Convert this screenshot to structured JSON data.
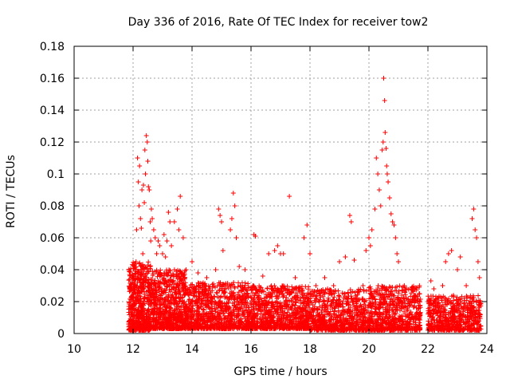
{
  "chart_data": {
    "type": "scatter",
    "title": "Day 336 of 2016, Rate Of TEC Index for receiver tow2",
    "xlabel": "GPS time / hours",
    "ylabel": "ROTI / TECUs",
    "xlim": [
      10,
      24
    ],
    "ylim": [
      0,
      0.18
    ],
    "xticks": [
      10,
      12,
      14,
      16,
      18,
      20,
      22,
      24
    ],
    "xtick_labels": [
      "10",
      "12",
      "14",
      "16",
      "18",
      "20",
      "22",
      "24"
    ],
    "yticks": [
      0,
      0.02,
      0.04,
      0.06,
      0.08,
      0.1,
      0.12,
      0.14,
      0.16,
      0.18
    ],
    "ytick_labels": [
      "0",
      "0.02",
      "0.04",
      "0.06",
      "0.08",
      "0.1",
      "0.12",
      "0.14",
      "0.16",
      "0.18"
    ],
    "grid": true,
    "marker": "+",
    "color": "#ff0000",
    "series": [
      {
        "name": "tow2",
        "points": [
          [
            11.9,
            0.028
          ],
          [
            11.95,
            0.012
          ],
          [
            12.0,
            0.02
          ],
          [
            12.05,
            0.031
          ],
          [
            12.1,
            0.045
          ],
          [
            12.12,
            0.065
          ],
          [
            12.15,
            0.11
          ],
          [
            12.18,
            0.095
          ],
          [
            12.2,
            0.08
          ],
          [
            12.22,
            0.105
          ],
          [
            12.25,
            0.072
          ],
          [
            12.28,
            0.066
          ],
          [
            12.3,
            0.09
          ],
          [
            12.33,
            0.05
          ],
          [
            12.35,
            0.093
          ],
          [
            12.38,
            0.082
          ],
          [
            12.4,
            0.115
          ],
          [
            12.42,
            0.1
          ],
          [
            12.45,
            0.124
          ],
          [
            12.48,
            0.12
          ],
          [
            12.5,
            0.108
          ],
          [
            12.52,
            0.092
          ],
          [
            12.55,
            0.09
          ],
          [
            12.58,
            0.07
          ],
          [
            12.6,
            0.058
          ],
          [
            12.62,
            0.078
          ],
          [
            12.65,
            0.072
          ],
          [
            12.7,
            0.065
          ],
          [
            12.75,
            0.06
          ],
          [
            12.8,
            0.05
          ],
          [
            12.85,
            0.058
          ],
          [
            12.9,
            0.055
          ],
          [
            13.0,
            0.05
          ],
          [
            13.05,
            0.062
          ],
          [
            13.1,
            0.048
          ],
          [
            13.15,
            0.058
          ],
          [
            13.2,
            0.076
          ],
          [
            13.25,
            0.07
          ],
          [
            13.3,
            0.055
          ],
          [
            13.4,
            0.07
          ],
          [
            13.5,
            0.078
          ],
          [
            13.55,
            0.065
          ],
          [
            13.6,
            0.086
          ],
          [
            13.7,
            0.06
          ],
          [
            13.8,
            0.04
          ],
          [
            14.0,
            0.045
          ],
          [
            14.2,
            0.038
          ],
          [
            14.5,
            0.035
          ],
          [
            14.8,
            0.04
          ],
          [
            14.9,
            0.078
          ],
          [
            14.95,
            0.074
          ],
          [
            15.0,
            0.07
          ],
          [
            15.05,
            0.052
          ],
          [
            15.3,
            0.065
          ],
          [
            15.35,
            0.072
          ],
          [
            15.4,
            0.088
          ],
          [
            15.45,
            0.08
          ],
          [
            15.5,
            0.06
          ],
          [
            15.6,
            0.042
          ],
          [
            15.8,
            0.04
          ],
          [
            16.1,
            0.062
          ],
          [
            16.15,
            0.061
          ],
          [
            16.4,
            0.036
          ],
          [
            16.6,
            0.05
          ],
          [
            16.8,
            0.052
          ],
          [
            16.9,
            0.055
          ],
          [
            17.0,
            0.05
          ],
          [
            17.1,
            0.05
          ],
          [
            17.3,
            0.086
          ],
          [
            17.5,
            0.035
          ],
          [
            17.8,
            0.06
          ],
          [
            17.9,
            0.068
          ],
          [
            18.0,
            0.05
          ],
          [
            18.2,
            0.03
          ],
          [
            18.5,
            0.035
          ],
          [
            18.8,
            0.03
          ],
          [
            19.0,
            0.045
          ],
          [
            19.2,
            0.048
          ],
          [
            19.35,
            0.074
          ],
          [
            19.4,
            0.07
          ],
          [
            19.5,
            0.046
          ],
          [
            19.8,
            0.03
          ],
          [
            19.9,
            0.052
          ],
          [
            20.0,
            0.06
          ],
          [
            20.05,
            0.055
          ],
          [
            20.1,
            0.065
          ],
          [
            20.2,
            0.078
          ],
          [
            20.25,
            0.11
          ],
          [
            20.3,
            0.1
          ],
          [
            20.35,
            0.09
          ],
          [
            20.4,
            0.08
          ],
          [
            20.45,
            0.115
          ],
          [
            20.48,
            0.12
          ],
          [
            20.5,
            0.16
          ],
          [
            20.53,
            0.146
          ],
          [
            20.55,
            0.126
          ],
          [
            20.58,
            0.116
          ],
          [
            20.6,
            0.105
          ],
          [
            20.62,
            0.1
          ],
          [
            20.65,
            0.095
          ],
          [
            20.7,
            0.085
          ],
          [
            20.75,
            0.075
          ],
          [
            20.8,
            0.07
          ],
          [
            20.85,
            0.068
          ],
          [
            20.9,
            0.06
          ],
          [
            20.95,
            0.05
          ],
          [
            21.0,
            0.045
          ],
          [
            21.2,
            0.03
          ],
          [
            21.5,
            0.028
          ],
          [
            21.7,
            0.025
          ],
          [
            22.1,
            0.033
          ],
          [
            22.2,
            0.028
          ],
          [
            22.5,
            0.03
          ],
          [
            22.6,
            0.045
          ],
          [
            22.7,
            0.05
          ],
          [
            22.8,
            0.052
          ],
          [
            23.0,
            0.04
          ],
          [
            23.1,
            0.048
          ],
          [
            23.3,
            0.03
          ],
          [
            23.5,
            0.072
          ],
          [
            23.55,
            0.078
          ],
          [
            23.6,
            0.065
          ],
          [
            23.65,
            0.06
          ],
          [
            23.7,
            0.045
          ],
          [
            23.75,
            0.035
          ]
        ],
        "dense_bands": [
          {
            "x_range": [
              11.85,
              12.6
            ],
            "y_range": [
              0.002,
              0.045
            ],
            "count": 600
          },
          {
            "x_range": [
              12.6,
              13.8
            ],
            "y_range": [
              0.003,
              0.04
            ],
            "count": 700
          },
          {
            "x_range": [
              13.8,
              16.0
            ],
            "y_range": [
              0.003,
              0.032
            ],
            "count": 900
          },
          {
            "x_range": [
              16.0,
              18.0
            ],
            "y_range": [
              0.003,
              0.03
            ],
            "count": 800
          },
          {
            "x_range": [
              18.0,
              20.0
            ],
            "y_range": [
              0.002,
              0.028
            ],
            "count": 700
          },
          {
            "x_range": [
              20.0,
              21.75
            ],
            "y_range": [
              0.002,
              0.03
            ],
            "count": 650
          },
          {
            "x_range": [
              22.0,
              23.8
            ],
            "y_range": [
              0.002,
              0.024
            ],
            "count": 600
          }
        ]
      }
    ]
  }
}
